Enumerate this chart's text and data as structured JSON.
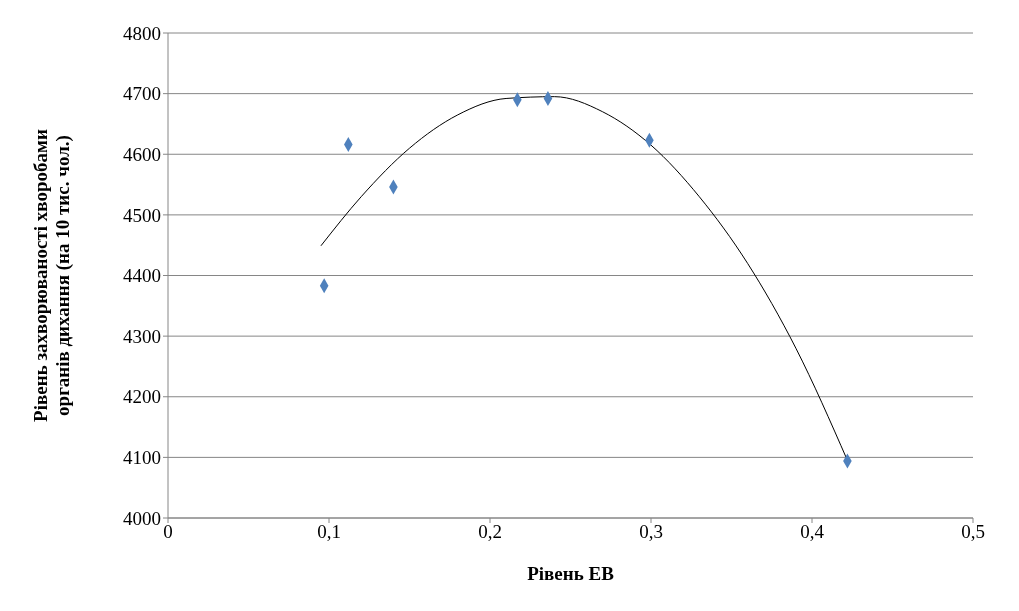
{
  "chart_data": {
    "type": "scatter",
    "xlabel": "Рівень ЕВ",
    "ylabel": "Рівень захворюваності хворобами органів дихання (на 10 тис. чол.)",
    "x": [
      0.097,
      0.112,
      0.14,
      0.217,
      0.236,
      0.299,
      0.422
    ],
    "series": [
      {
        "color": "#4f81bd",
        "marker": "diamond",
        "values": [
          4383,
          4616,
          4546,
          4690,
          4692,
          4623,
          4094
        ]
      },
      {
        "type": "line",
        "color": "#000000",
        "marker": "none",
        "line_style": "solid",
        "x": [
          0.095,
          0.12,
          0.15,
          0.18,
          0.21,
          0.24,
          0.27,
          0.3,
          0.33,
          0.36,
          0.39,
          0.422
        ],
        "values": [
          4449,
          4530,
          4610,
          4665,
          4692,
          4695,
          4670,
          4615,
          4530,
          4420,
          4280,
          4095
        ]
      }
    ],
    "xlim": [
      0,
      0.5
    ],
    "xticks": [
      {
        "value": 0,
        "label": "0"
      },
      {
        "value": 0.1,
        "label": "0,1"
      },
      {
        "value": 0.2,
        "label": "0,2"
      },
      {
        "value": 0.3,
        "label": "0,3"
      },
      {
        "value": 0.4,
        "label": "0,4"
      },
      {
        "value": 0.5,
        "label": "0,5"
      }
    ],
    "ylim": [
      4000,
      4800
    ],
    "yticks": [
      4000,
      4100,
      4200,
      4300,
      4400,
      4500,
      4600,
      4700,
      4800
    ],
    "grid": "y"
  }
}
